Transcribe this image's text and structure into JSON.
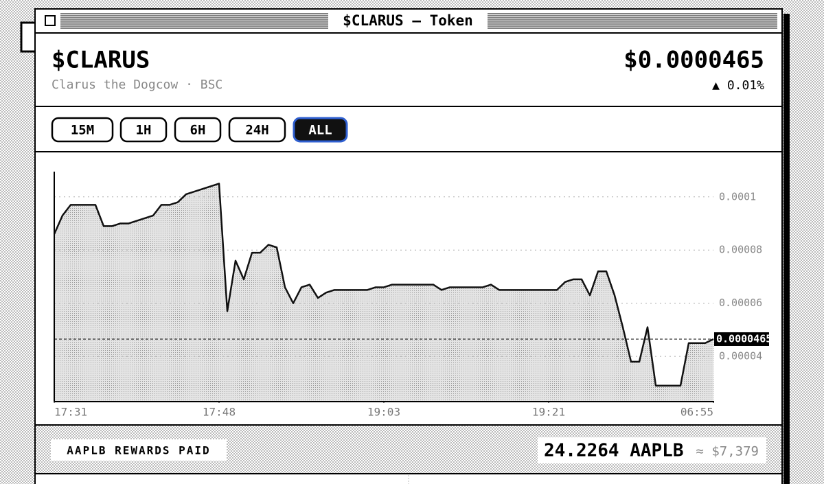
{
  "window": {
    "title": "$CLARUS — Token"
  },
  "header": {
    "symbol": "$CLARUS",
    "subtitle": "Clarus the Dogcow · BSC",
    "price": "$0.0000465",
    "change": "▲ 0.01%"
  },
  "timeframes": {
    "options": [
      "15M",
      "1H",
      "6H",
      "24H",
      "ALL"
    ],
    "active": 4
  },
  "chart_data": {
    "type": "area",
    "color": "#111111",
    "values": [
      8.6e-05,
      9.3e-05,
      9.7e-05,
      9.7e-05,
      9.7e-05,
      9.7e-05,
      8.9e-05,
      8.9e-05,
      9e-05,
      9e-05,
      9.1e-05,
      9.2e-05,
      9.3e-05,
      9.7e-05,
      9.7e-05,
      9.8e-05,
      0.000101,
      0.000102,
      0.000103,
      0.000104,
      0.000105,
      5.7e-05,
      7.6e-05,
      6.9e-05,
      7.9e-05,
      7.9e-05,
      8.2e-05,
      8.1e-05,
      6.6e-05,
      6e-05,
      6.6e-05,
      6.7e-05,
      6.2e-05,
      6.4e-05,
      6.5e-05,
      6.5e-05,
      6.5e-05,
      6.5e-05,
      6.5e-05,
      6.6e-05,
      6.6e-05,
      6.7e-05,
      6.7e-05,
      6.7e-05,
      6.7e-05,
      6.7e-05,
      6.7e-05,
      6.5e-05,
      6.6e-05,
      6.6e-05,
      6.6e-05,
      6.6e-05,
      6.6e-05,
      6.7e-05,
      6.5e-05,
      6.5e-05,
      6.5e-05,
      6.5e-05,
      6.5e-05,
      6.5e-05,
      6.5e-05,
      6.5e-05,
      6.8e-05,
      6.9e-05,
      6.9e-05,
      6.3e-05,
      7.2e-05,
      7.2e-05,
      6.3e-05,
      5.1e-05,
      3.8e-05,
      3.8e-05,
      5.1e-05,
      2.9e-05,
      2.9e-05,
      2.9e-05,
      2.9e-05,
      4.5e-05,
      4.5e-05,
      4.5e-05,
      4.65e-05
    ],
    "xlim": [
      0,
      80
    ],
    "xticks": [
      {
        "value": 0,
        "label": "17:31"
      },
      {
        "value": 20,
        "label": "17:48"
      },
      {
        "value": 40,
        "label": "19:03"
      },
      {
        "value": 60,
        "label": "19:21"
      },
      {
        "value": 80,
        "label": "06:55"
      }
    ],
    "ylim": [
      2.3e-05,
      0.0001095
    ],
    "yticks": [
      4e-05,
      6e-05,
      8e-05,
      0.0001
    ],
    "current_price": 4.65e-05,
    "grid": true
  },
  "rewards": {
    "label": "AAPLB REWARDS PAID",
    "amount": "24.2264 AAPLB",
    "usd": "≈ $7,379"
  }
}
